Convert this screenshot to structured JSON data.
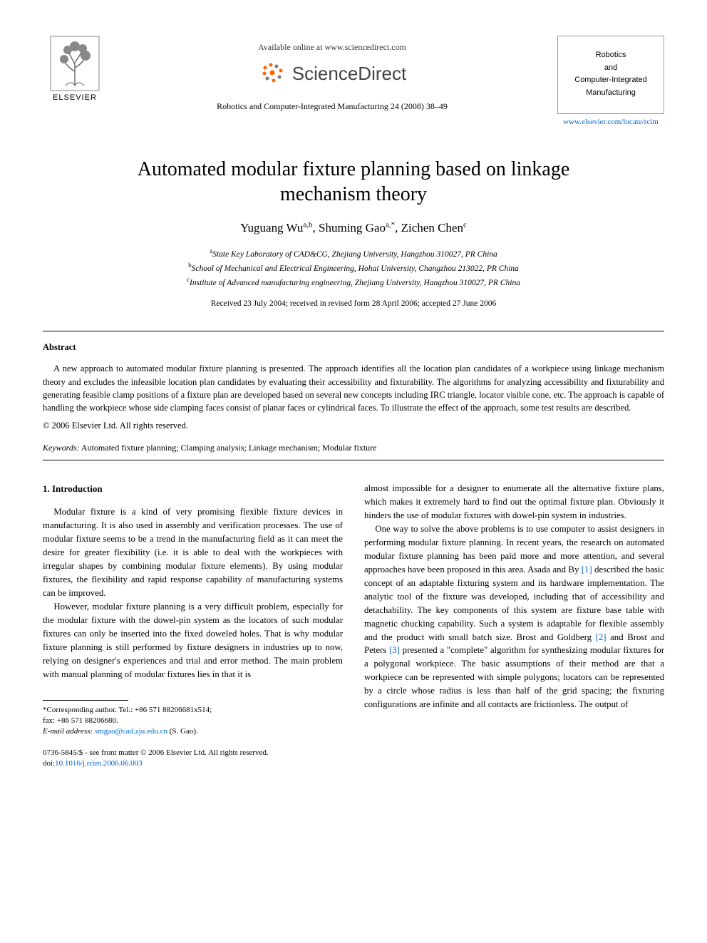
{
  "header": {
    "avail_online": "Available online at www.sciencedirect.com",
    "sd_brand": "ScienceDirect",
    "journal_ref": "Robotics and Computer-Integrated Manufacturing 24 (2008) 38–49",
    "elsevier_label": "ELSEVIER",
    "journal_box_l1": "Robotics",
    "journal_box_l2": "and",
    "journal_box_l3": "Computer-Integrated",
    "journal_box_l4": "Manufacturing",
    "journal_url": "www.elsevier.com/locate/rcim"
  },
  "title": "Automated modular fixture planning based on linkage mechanism theory",
  "authors_html": "Yuguang Wu<sup>a,b</sup>, Shuming Gao<sup>a,*</sup>, Zichen Chen<sup>c</sup>",
  "affiliations": {
    "a": "State Key Laboratory of CAD&CG, Zhejiang University, Hangzhou 310027, PR China",
    "b": "School of Mechanical and Electrical Engineering, Hohai University, Changzhou 213022, PR China",
    "c": "Institute of Advanced manufacturing engineering, Zhejiang University, Hangzhou 310027, PR China"
  },
  "received": "Received 23 July 2004; received in revised form 28 April 2006; accepted 27 June 2006",
  "abstract_label": "Abstract",
  "abstract_text": "A new approach to automated modular fixture planning is presented. The approach identifies all the location plan candidates of a workpiece using linkage mechanism theory and excludes the infeasible location plan candidates by evaluating their accessibility and fixturability. The algorithms for analyzing accessibility and fixturability and generating feasible clamp positions of a fixture plan are developed based on several new concepts including IRC triangle, locator visible cone, etc. The approach is capable of handling the workpiece whose side clamping faces consist of planar faces or cylindrical faces. To illustrate the effect of the approach, some test results are described.",
  "copyright": "© 2006 Elsevier Ltd. All rights reserved.",
  "keywords_label": "Keywords:",
  "keywords": "Automated fixture planning; Clamping analysis; Linkage mechanism; Modular fixture",
  "section1_heading": "1. Introduction",
  "col_left_p1": "Modular fixture is a kind of very promising flexible fixture devices in manufacturing. It is also used in assembly and verification processes. The use of modular fixture seems to be a trend in the manufacturing field as it can meet the desire for greater flexibility (i.e. it is able to deal with the workpieces with irregular shapes by combining modular fixture elements). By using modular fixtures, the flexibility and rapid response capability of manufacturing systems can be improved.",
  "col_left_p2": "However, modular fixture planning is a very difficult problem, especially for the modular fixture with the dowel-pin system as the locators of such modular fixtures can only be inserted into the fixed doweled holes. That is why modular fixture planning is still performed by fixture designers in industries up to now, relying on designer's experiences and trial and error method. The main problem with manual planning of modular fixtures lies in that it is",
  "col_right_p1": "almost impossible for a designer to enumerate all the alternative fixture plans, which makes it extremely hard to find out the optimal fixture plan. Obviously it hinders the use of modular fixtures with dowel-pin system in industries.",
  "col_right_p2a": "One way to solve the above problems is to use computer to assist designers in performing modular fixture planning. In recent years, the research on automated modular fixture planning has been paid more and more attention, and several approaches have been proposed in this area. Asada and By ",
  "ref1": "[1]",
  "col_right_p2b": " described the basic concept of an adaptable fixturing system and its hardware implementation. The analytic tool of the fixture was developed, including that of accessibility and detachability. The key components of this system are fixture base table with magnetic chucking capability. Such a system is adaptable for flexible assembly and the product with small batch size. Brost and Goldberg ",
  "ref2": "[2]",
  "col_right_p2c": " and Brost and Peters ",
  "ref3": "[3]",
  "col_right_p2d": " presented a \"complete\" algorithm for synthesizing modular fixtures for a polygonal workpiece. The basic assumptions of their method are that a workpiece can be represented with simple polygons; locators can be represented by a circle whose radius is less than half of the grid spacing; the fixturing configurations are infinite and all contacts are frictionless. The output of",
  "footnote_corr": "*Corresponding author. Tel.: +86 571 88206681x514;",
  "footnote_fax": "fax: +86 571 88206680.",
  "footnote_email_label": "E-mail address:",
  "footnote_email": "smgao@cad.zju.edu.cn",
  "footnote_email_suffix": "(S. Gao).",
  "bottom_l1": "0736-5845/$ - see front matter © 2006 Elsevier Ltd. All rights reserved.",
  "bottom_doi_prefix": "doi:",
  "bottom_doi": "10.1016/j.rcim.2006.06.003",
  "colors": {
    "link": "#0066cc",
    "text": "#000000",
    "bg": "#ffffff",
    "elsevier_orange": "#ff6600",
    "sd_orange": "#ff6600",
    "sd_gray": "#7a7a7a"
  }
}
